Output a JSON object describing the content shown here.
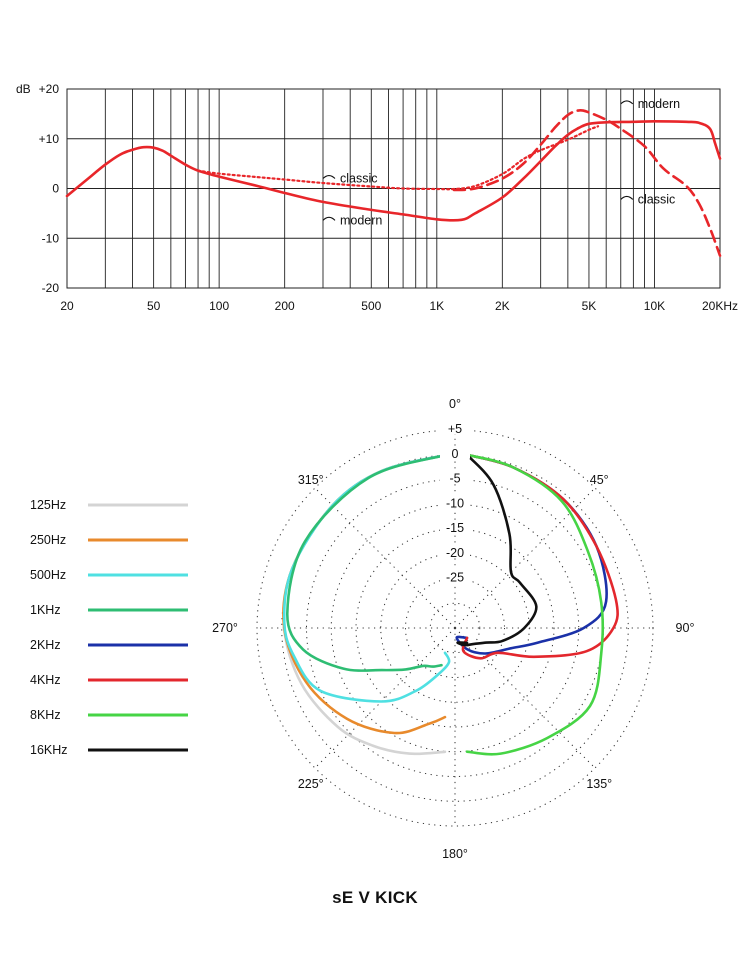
{
  "caption": "sE V KICK",
  "chart_data": [
    {
      "type": "line",
      "name": "frequency-response",
      "x_scale": "log",
      "xlim": [
        20,
        20000
      ],
      "ylim": [
        -20,
        20
      ],
      "yunit": "dB",
      "xtick_labels": [
        {
          "value": 20,
          "label": "20"
        },
        {
          "value": 50,
          "label": "50"
        },
        {
          "value": 100,
          "label": "100"
        },
        {
          "value": 200,
          "label": "200"
        },
        {
          "value": 500,
          "label": "500"
        },
        {
          "value": 1000,
          "label": "1K"
        },
        {
          "value": 2000,
          "label": "2K"
        },
        {
          "value": 5000,
          "label": "5K"
        },
        {
          "value": 10000,
          "label": "10K"
        },
        {
          "value": 20000,
          "label": "20KHz"
        }
      ],
      "ytick_labels": [
        {
          "value": 20,
          "label": "+20"
        },
        {
          "value": 10,
          "label": "+10"
        },
        {
          "value": 0,
          "label": "0"
        },
        {
          "value": -10,
          "label": "-10"
        },
        {
          "value": -20,
          "label": "-20"
        }
      ],
      "grid": true,
      "series": [
        {
          "name": "modern",
          "style": "solid",
          "color": "#e8262a",
          "points": [
            [
              20,
              -1.5
            ],
            [
              25,
              2
            ],
            [
              30,
              4.8
            ],
            [
              35,
              6.8
            ],
            [
              40,
              7.8
            ],
            [
              45,
              8.3
            ],
            [
              50,
              8.2
            ],
            [
              55,
              7.6
            ],
            [
              60,
              6.6
            ],
            [
              70,
              4.8
            ],
            [
              80,
              3.6
            ],
            [
              100,
              2.4
            ],
            [
              150,
              0.5
            ],
            [
              200,
              -0.9
            ],
            [
              300,
              -2.7
            ],
            [
              500,
              -4.3
            ],
            [
              700,
              -5.2
            ],
            [
              1000,
              -6.2
            ],
            [
              1300,
              -6.3
            ],
            [
              1500,
              -5
            ],
            [
              2000,
              -1.8
            ],
            [
              2500,
              2
            ],
            [
              3000,
              5.5
            ],
            [
              3500,
              8.5
            ],
            [
              4000,
              10.8
            ],
            [
              4500,
              12.2
            ],
            [
              5000,
              13
            ],
            [
              6000,
              13.3
            ],
            [
              8000,
              13.4
            ],
            [
              10000,
              13.5
            ],
            [
              14000,
              13.4
            ],
            [
              16000,
              13.2
            ],
            [
              18000,
              12
            ],
            [
              19000,
              9
            ],
            [
              20000,
              6
            ]
          ]
        },
        {
          "name": "classic",
          "style": "dashed",
          "color": "#e8262a",
          "points": [
            [
              1200,
              -0.3
            ],
            [
              1500,
              0
            ],
            [
              2000,
              2
            ],
            [
              2500,
              5
            ],
            [
              3000,
              8.8
            ],
            [
              3500,
              12.3
            ],
            [
              4000,
              14.8
            ],
            [
              4500,
              15.7
            ],
            [
              5000,
              15.3
            ],
            [
              6000,
              13.8
            ],
            [
              7000,
              12
            ],
            [
              9000,
              8.5
            ],
            [
              11000,
              4
            ],
            [
              14000,
              0.5
            ],
            [
              16000,
              -3
            ],
            [
              18000,
              -8
            ],
            [
              20000,
              -13.5
            ]
          ]
        },
        {
          "name": "classic",
          "style": "dotted",
          "color": "#e8262a",
          "points": [
            [
              80,
              3.6
            ],
            [
              100,
              3
            ],
            [
              150,
              2.3
            ],
            [
              200,
              1.8
            ],
            [
              300,
              1.1
            ],
            [
              500,
              0.4
            ],
            [
              700,
              0
            ],
            [
              1000,
              -0.1
            ],
            [
              1200,
              -0.1
            ],
            [
              1500,
              0.5
            ],
            [
              2000,
              2.9
            ],
            [
              2500,
              5.9
            ],
            [
              3000,
              7.7
            ],
            [
              4000,
              9.8
            ],
            [
              5000,
              11.8
            ],
            [
              5500,
              12.5
            ]
          ]
        }
      ],
      "annotations": [
        {
          "text": "classic",
          "x": 300,
          "y": 1.6
        },
        {
          "text": "modern",
          "x": 300,
          "y": -6.8
        },
        {
          "text": "modern",
          "x": 7000,
          "y": 16.6
        },
        {
          "text": "classic",
          "x": 7000,
          "y": -2.6
        }
      ]
    },
    {
      "type": "polar",
      "name": "polar-pattern",
      "r_unit": "dB",
      "r_range": [
        -35,
        5
      ],
      "ring_labels": [
        {
          "value": 5,
          "label": "+5"
        },
        {
          "value": 0,
          "label": "0"
        },
        {
          "value": -5,
          "label": "-5"
        },
        {
          "value": -10,
          "label": "-10"
        },
        {
          "value": -15,
          "label": "-15"
        },
        {
          "value": -20,
          "label": "-20"
        },
        {
          "value": -25,
          "label": "-25"
        }
      ],
      "angle_labels": [
        {
          "angle": 0,
          "label": "0°"
        },
        {
          "angle": 45,
          "label": "45°"
        },
        {
          "angle": 90,
          "label": "90°"
        },
        {
          "angle": 135,
          "label": "135°"
        },
        {
          "angle": 180,
          "label": "180°"
        },
        {
          "angle": 225,
          "label": "225°"
        },
        {
          "angle": 270,
          "label": "270°"
        },
        {
          "angle": 315,
          "label": "315°"
        }
      ],
      "series": [
        {
          "name": "125Hz",
          "color": "#d4d4d4",
          "points": [
            [
              180,
              -10
            ],
            [
              200,
              -8
            ],
            [
              215,
              -6
            ],
            [
              230,
              -4
            ],
            [
              250,
              -2
            ],
            [
              270,
              -0.5
            ],
            [
              290,
              0
            ],
            [
              315,
              0
            ],
            [
              335,
              0
            ],
            [
              360,
              0
            ]
          ]
        },
        {
          "name": "250Hz",
          "color": "#e88a2c",
          "points": [
            [
              180,
              -17
            ],
            [
              195,
              -15
            ],
            [
              210,
              -10.5
            ],
            [
              230,
              -6.5
            ],
            [
              250,
              -3
            ],
            [
              270,
              -0.5
            ],
            [
              290,
              0
            ],
            [
              315,
              0
            ],
            [
              335,
              0
            ],
            [
              360,
              0
            ]
          ]
        },
        {
          "name": "500Hz",
          "color": "#4fe0e2",
          "points": [
            [
              180,
              -30
            ],
            [
              190,
              -28
            ],
            [
              200,
              -25
            ],
            [
              212,
              -20
            ],
            [
              225,
              -14
            ],
            [
              245,
              -5
            ],
            [
              260,
              -2
            ],
            [
              272,
              -0.5
            ],
            [
              290,
              0
            ],
            [
              315,
              0
            ],
            [
              335,
              0
            ],
            [
              360,
              0
            ]
          ]
        },
        {
          "name": "1KHz",
          "color": "#2ebd73",
          "points": [
            [
              200,
              -27
            ],
            [
              210,
              -26
            ],
            [
              220,
              -25
            ],
            [
              230,
              -22
            ],
            [
              240,
              -18
            ],
            [
              250,
              -11
            ],
            [
              262,
              -4
            ],
            [
              275,
              -1
            ],
            [
              300,
              0
            ],
            [
              330,
              0
            ],
            [
              360,
              0
            ]
          ]
        },
        {
          "name": "2KHz",
          "color": "#1b31a8",
          "points": [
            [
              0,
              0
            ],
            [
              20,
              -0.5
            ],
            [
              40,
              -1
            ],
            [
              60,
              -2
            ],
            [
              80,
              -4
            ],
            [
              90,
              -9
            ],
            [
              100,
              -18
            ],
            [
              110,
              -23
            ],
            [
              130,
              -27
            ],
            [
              150,
              -30
            ],
            [
              170,
              -33
            ],
            [
              178,
              -33
            ]
          ]
        },
        {
          "name": "4KHz",
          "color": "#e3272d",
          "points": [
            [
              0,
              0
            ],
            [
              20,
              -0.5
            ],
            [
              40,
              -1
            ],
            [
              60,
              -2
            ],
            [
              80,
              -2
            ],
            [
              90,
              -3
            ],
            [
              100,
              -8
            ],
            [
              110,
              -18
            ],
            [
              120,
              -25
            ],
            [
              140,
              -27
            ],
            [
              160,
              -30
            ],
            [
              178,
              -33
            ]
          ]
        },
        {
          "name": "8KHz",
          "color": "#46d445",
          "points": [
            [
              0,
              0
            ],
            [
              20,
              -0.5
            ],
            [
              40,
              -1.5
            ],
            [
              60,
              -4
            ],
            [
              80,
              -5
            ],
            [
              100,
              -5
            ],
            [
              120,
              -3.5
            ],
            [
              140,
              -6
            ],
            [
              160,
              -8
            ],
            [
              178,
              -10
            ]
          ]
        },
        {
          "name": "16KHz",
          "color": "#111111",
          "points": [
            [
              0,
              0
            ],
            [
              15,
              -5
            ],
            [
              30,
              -13
            ],
            [
              45,
              -19
            ],
            [
              55,
              -19
            ],
            [
              75,
              -18
            ],
            [
              90,
              -21
            ],
            [
              105,
              -25
            ],
            [
              115,
              -28
            ],
            [
              130,
              -30
            ],
            [
              150,
              -31
            ],
            [
              170,
              -32
            ],
            [
              178,
              -32
            ]
          ]
        }
      ]
    }
  ]
}
